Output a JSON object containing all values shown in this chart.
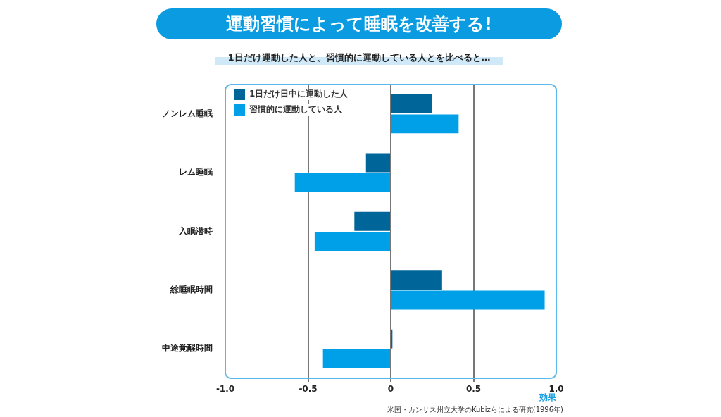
{
  "chart_data": {
    "type": "bar",
    "orientation": "horizontal",
    "title": "運動習慣によって睡眠を改善する!",
    "subtitle": "1日だけ運動した人と、習慣的に運動している人とを比べると…",
    "xlabel": "効果",
    "categories": [
      "ノンレム睡眠",
      "レム睡眠",
      "入眠潜時",
      "総睡眠時間",
      "中途覚醒時間"
    ],
    "series": [
      {
        "name": "1日だけ日中に運動した人",
        "color": "#006699",
        "values": [
          0.25,
          -0.15,
          -0.22,
          0.31,
          0.01
        ]
      },
      {
        "name": "習慣的に運動している人",
        "color": "#00a0e9",
        "values": [
          0.41,
          -0.58,
          -0.46,
          0.93,
          -0.41
        ]
      }
    ],
    "xlim": [
      -1.0,
      1.0
    ],
    "xticks": [
      {
        "value": -1,
        "label": "-1.0"
      },
      {
        "value": -0.5,
        "label": "-0.5"
      },
      0,
      0.5,
      {
        "value": 1,
        "label": "1.0"
      }
    ],
    "grid": "x",
    "legend": "top left",
    "annotations": [
      "米国・カンサス州立大学のKubizらによる研究(1996年)"
    ]
  }
}
